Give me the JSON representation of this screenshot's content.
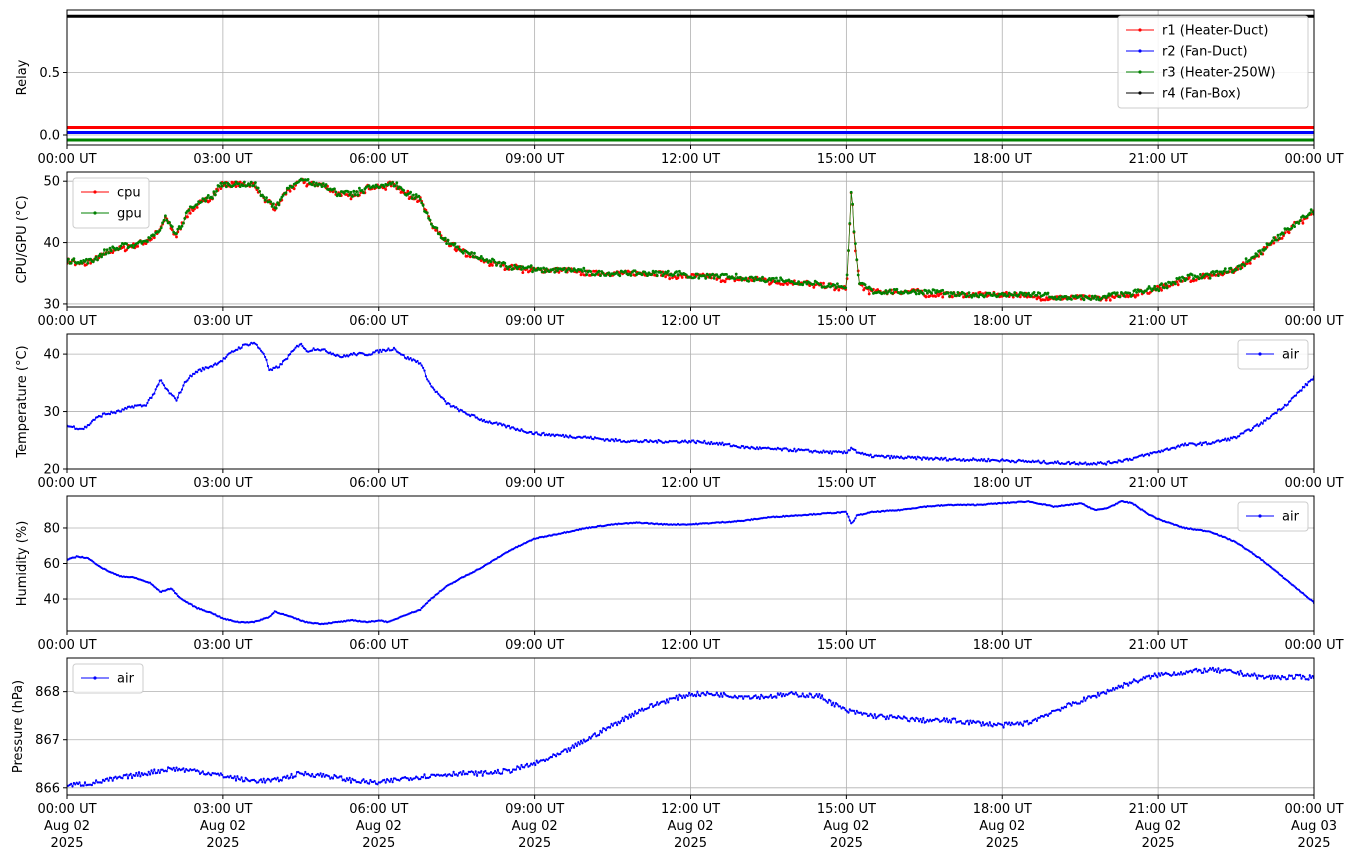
{
  "chart_data": [
    {
      "type": "line",
      "ylabel": "Relay",
      "ylim": [
        -0.08,
        1.0
      ],
      "yticks": [
        0.0,
        0.5
      ],
      "ytick_labels": [
        "0.0",
        "0.5"
      ],
      "xtick_labels": [
        "00:00 UT",
        "03:00 UT",
        "06:00 UT",
        "09:00 UT",
        "12:00 UT",
        "15:00 UT",
        "18:00 UT",
        "21:00 UT",
        "00:00 UT"
      ],
      "grid": true,
      "legend_position": "top-right",
      "series": [
        {
          "name": "r1 (Heater-Duct)",
          "color": "#ff0000",
          "x": [
            0,
            24
          ],
          "y": [
            0.06,
            0.06
          ]
        },
        {
          "name": "r2 (Fan-Duct)",
          "color": "#0000ff",
          "x": [
            0,
            24
          ],
          "y": [
            0.02,
            0.02
          ]
        },
        {
          "name": "r3 (Heater-250W)",
          "color": "#008000",
          "x": [
            0,
            24
          ],
          "y": [
            -0.04,
            -0.04
          ]
        },
        {
          "name": "r4 (Fan-Box)",
          "color": "#000000",
          "x": [
            0,
            24
          ],
          "y": [
            0.95,
            0.95
          ]
        }
      ]
    },
    {
      "type": "line",
      "ylabel": "CPU/GPU (°C)",
      "ylim": [
        29.5,
        51.5
      ],
      "yticks": [
        30,
        40,
        50
      ],
      "ytick_labels": [
        "30",
        "40",
        "50"
      ],
      "xtick_labels": [
        "00:00 UT",
        "03:00 UT",
        "06:00 UT",
        "09:00 UT",
        "12:00 UT",
        "15:00 UT",
        "18:00 UT",
        "21:00 UT",
        "00:00 UT"
      ],
      "grid": true,
      "legend_position": "top-left",
      "series": [
        {
          "name": "cpu",
          "color": "#ff0000",
          "x": [
            0,
            0.3,
            0.5,
            0.8,
            1.0,
            1.3,
            1.6,
            1.8,
            1.9,
            2.1,
            2.3,
            2.5,
            2.8,
            3.0,
            3.3,
            3.6,
            3.8,
            4.0,
            4.2,
            4.5,
            4.7,
            4.9,
            5.2,
            5.5,
            5.8,
            6.0,
            6.3,
            6.5,
            6.8,
            7.0,
            7.3,
            7.6,
            8.0,
            8.5,
            9.0,
            9.5,
            10.0,
            11.0,
            12.0,
            13.0,
            14.0,
            14.5,
            15.0,
            15.05,
            15.1,
            15.15,
            15.25,
            15.5,
            16.0,
            17.0,
            18.0,
            19.0,
            20.0,
            20.5,
            21.0,
            21.5,
            22.0,
            22.5,
            23.0,
            23.5,
            24.0
          ],
          "y": [
            37,
            36.5,
            37,
            38.5,
            39,
            39.5,
            40.5,
            42,
            44,
            41,
            44.5,
            46,
            47.5,
            49.5,
            49.5,
            49.5,
            47,
            45.5,
            48,
            50,
            49.5,
            49.5,
            48,
            47.5,
            49,
            49,
            49.5,
            48,
            47,
            43,
            40,
            38.5,
            37,
            36,
            35.5,
            35.5,
            35,
            35,
            34.5,
            34,
            33.5,
            33,
            32.5,
            40,
            49.5,
            41,
            33,
            32,
            32,
            31.5,
            31.5,
            31,
            31,
            31.5,
            32.5,
            34,
            34.5,
            35.5,
            38.5,
            42,
            45
          ]
        },
        {
          "name": "gpu",
          "color": "#008000",
          "x": [
            0,
            0.3,
            0.5,
            0.8,
            1.0,
            1.3,
            1.6,
            1.8,
            1.9,
            2.1,
            2.3,
            2.5,
            2.8,
            3.0,
            3.3,
            3.6,
            3.8,
            4.0,
            4.2,
            4.5,
            4.7,
            4.9,
            5.2,
            5.5,
            5.8,
            6.0,
            6.3,
            6.5,
            6.8,
            7.0,
            7.3,
            7.6,
            8.0,
            8.5,
            9.0,
            9.5,
            10.0,
            11.0,
            12.0,
            13.0,
            14.0,
            14.5,
            15.0,
            15.05,
            15.1,
            15.15,
            15.25,
            15.5,
            16.0,
            17.0,
            18.0,
            19.0,
            20.0,
            20.5,
            21.0,
            21.5,
            22.0,
            22.5,
            23.0,
            23.5,
            24.0
          ],
          "y": [
            37.2,
            36.7,
            37.2,
            38.7,
            39.2,
            39.7,
            40.7,
            42.2,
            44.2,
            41.2,
            44.7,
            46.2,
            47.7,
            49.7,
            49.7,
            49.7,
            47.2,
            45.7,
            48.2,
            50.2,
            49.7,
            49.7,
            48.2,
            47.7,
            49.2,
            49.2,
            49.7,
            48.2,
            47.2,
            43.2,
            40.2,
            38.7,
            37.2,
            36.2,
            35.7,
            35.7,
            35.2,
            35.2,
            34.7,
            34.2,
            33.7,
            33.2,
            32.7,
            40.2,
            49.7,
            41.2,
            33.2,
            32.2,
            32.2,
            31.7,
            31.7,
            31.2,
            31.2,
            31.7,
            32.7,
            34.2,
            34.7,
            35.7,
            38.7,
            42.2,
            45.2
          ]
        }
      ]
    },
    {
      "type": "line",
      "ylabel": "Temperature (°C)",
      "ylim": [
        20,
        43.5
      ],
      "yticks": [
        20,
        30,
        40
      ],
      "ytick_labels": [
        "20",
        "30",
        "40"
      ],
      "xtick_labels": [
        "00:00 UT",
        "03:00 UT",
        "06:00 UT",
        "09:00 UT",
        "12:00 UT",
        "15:00 UT",
        "18:00 UT",
        "21:00 UT",
        "00:00 UT"
      ],
      "grid": true,
      "legend_position": "top-right",
      "series": [
        {
          "name": "air",
          "color": "#0000ff",
          "x": [
            0,
            0.3,
            0.4,
            0.5,
            0.7,
            1.0,
            1.3,
            1.5,
            1.7,
            1.8,
            1.9,
            2.0,
            2.1,
            2.3,
            2.5,
            2.8,
            3.0,
            3.2,
            3.4,
            3.6,
            3.8,
            3.9,
            4.1,
            4.3,
            4.5,
            4.6,
            4.8,
            5.0,
            5.3,
            5.5,
            5.8,
            6.0,
            6.3,
            6.5,
            6.8,
            7.0,
            7.3,
            7.6,
            8.0,
            8.5,
            9.0,
            9.5,
            10.0,
            10.5,
            11.0,
            11.5,
            12.0,
            12.5,
            13.0,
            13.5,
            14.0,
            14.5,
            15.0,
            15.1,
            15.2,
            15.4,
            16.0,
            17.0,
            18.0,
            18.5,
            19.0,
            19.5,
            20.0,
            20.5,
            21.0,
            21.5,
            22.0,
            22.5,
            23.0,
            23.5,
            24.0
          ],
          "y": [
            27.5,
            27,
            27.5,
            28.5,
            29.5,
            30,
            31,
            31,
            33.5,
            35.5,
            34,
            33,
            32,
            35.5,
            37,
            38,
            39,
            40.5,
            41.5,
            42,
            40,
            37,
            38,
            40,
            42,
            40.5,
            41,
            40.5,
            39.5,
            40,
            40,
            40.5,
            41,
            39.5,
            38.5,
            34.5,
            31.5,
            30,
            28.5,
            27.3,
            26.2,
            25.8,
            25.5,
            25,
            24.8,
            24.8,
            24.8,
            24.5,
            23.8,
            23.5,
            23.3,
            23,
            22.8,
            23.8,
            23.0,
            22.3,
            22,
            21.7,
            21.5,
            21.3,
            21.1,
            21,
            21,
            21.8,
            23,
            24.2,
            24.5,
            25.5,
            28,
            31.5,
            36
          ]
        }
      ]
    },
    {
      "type": "line",
      "ylabel": "Humidity (%)",
      "ylim": [
        22,
        98
      ],
      "yticks": [
        40,
        60,
        80
      ],
      "ytick_labels": [
        "40",
        "60",
        "80"
      ],
      "xtick_labels": [
        "00:00 UT",
        "03:00 UT",
        "06:00 UT",
        "09:00 UT",
        "12:00 UT",
        "15:00 UT",
        "18:00 UT",
        "21:00 UT",
        "00:00 UT"
      ],
      "grid": true,
      "legend_position": "top-right",
      "series": [
        {
          "name": "air",
          "color": "#0000ff",
          "x": [
            0,
            0.2,
            0.4,
            0.7,
            1.0,
            1.3,
            1.6,
            1.8,
            2.0,
            2.2,
            2.5,
            2.8,
            3.0,
            3.3,
            3.6,
            3.9,
            4.0,
            4.3,
            4.6,
            4.9,
            5.2,
            5.5,
            5.8,
            6.0,
            6.2,
            6.5,
            6.8,
            7.0,
            7.3,
            7.6,
            8.0,
            8.5,
            9.0,
            9.5,
            10.0,
            10.5,
            11.0,
            11.5,
            12.0,
            12.5,
            13.0,
            13.5,
            14.0,
            14.5,
            15.0,
            15.1,
            15.2,
            15.5,
            16.0,
            16.5,
            17.0,
            17.5,
            18.0,
            18.5,
            19.0,
            19.3,
            19.5,
            19.8,
            20.0,
            20.3,
            20.5,
            20.8,
            21.0,
            21.5,
            22.0,
            22.5,
            23.0,
            23.5,
            24.0
          ],
          "y": [
            62,
            64,
            63,
            57,
            53,
            52,
            49,
            44,
            46,
            40,
            35,
            32,
            29,
            27,
            27,
            30,
            33,
            30,
            27,
            26,
            27,
            28,
            27,
            28,
            27,
            31,
            34,
            40,
            47,
            52,
            58,
            67,
            74,
            77,
            80,
            82,
            83,
            82,
            82,
            83,
            84,
            86,
            87,
            88,
            89,
            82,
            87,
            89,
            90,
            92,
            93,
            93,
            94,
            95,
            92,
            93,
            94,
            90,
            91,
            95,
            94,
            88,
            85,
            80,
            78,
            72,
            62,
            50,
            38
          ]
        }
      ]
    },
    {
      "type": "line",
      "ylabel": "Pressure (hPa)",
      "ylim": [
        865.85,
        868.7
      ],
      "yticks": [
        866,
        867,
        868
      ],
      "ytick_labels": [
        "866",
        "867",
        "868"
      ],
      "xtick_labels": [
        "00:00 UT",
        "03:00 UT",
        "06:00 UT",
        "09:00 UT",
        "12:00 UT",
        "15:00 UT",
        "18:00 UT",
        "21:00 UT",
        "00:00 UT"
      ],
      "xtick_dates": [
        "Aug 02",
        "Aug 02",
        "Aug 02",
        "Aug 02",
        "Aug 02",
        "Aug 02",
        "Aug 02",
        "Aug 02",
        "Aug 03"
      ],
      "xtick_years": [
        "2025",
        "2025",
        "2025",
        "2025",
        "2025",
        "2025",
        "2025",
        "2025",
        "2025"
      ],
      "grid": true,
      "legend_position": "top-left",
      "series": [
        {
          "name": "air",
          "color": "#0000ff",
          "x": [
            0,
            0.5,
            1.0,
            1.5,
            2.0,
            2.5,
            3.0,
            3.5,
            4.0,
            4.5,
            5.0,
            5.5,
            6.0,
            6.5,
            7.0,
            7.5,
            8.0,
            8.5,
            9.0,
            9.5,
            10.0,
            10.5,
            11.0,
            11.5,
            12.0,
            12.5,
            13.0,
            13.5,
            14.0,
            14.5,
            15.0,
            15.5,
            16.0,
            16.5,
            17.0,
            17.5,
            18.0,
            18.5,
            19.0,
            19.5,
            20.0,
            20.5,
            21.0,
            21.5,
            22.0,
            22.5,
            23.0,
            23.5,
            24.0
          ],
          "y": [
            866.05,
            866.1,
            866.2,
            866.3,
            866.4,
            866.35,
            866.25,
            866.15,
            866.15,
            866.3,
            866.25,
            866.15,
            866.1,
            866.2,
            866.25,
            866.3,
            866.3,
            866.35,
            866.5,
            866.7,
            867.0,
            867.3,
            867.6,
            867.8,
            867.95,
            867.95,
            867.9,
            867.9,
            867.95,
            867.9,
            867.6,
            867.5,
            867.45,
            867.4,
            867.4,
            867.35,
            867.3,
            867.35,
            867.6,
            867.8,
            868.0,
            868.2,
            868.35,
            868.4,
            868.45,
            868.4,
            868.3,
            868.3,
            868.3
          ]
        }
      ]
    }
  ]
}
